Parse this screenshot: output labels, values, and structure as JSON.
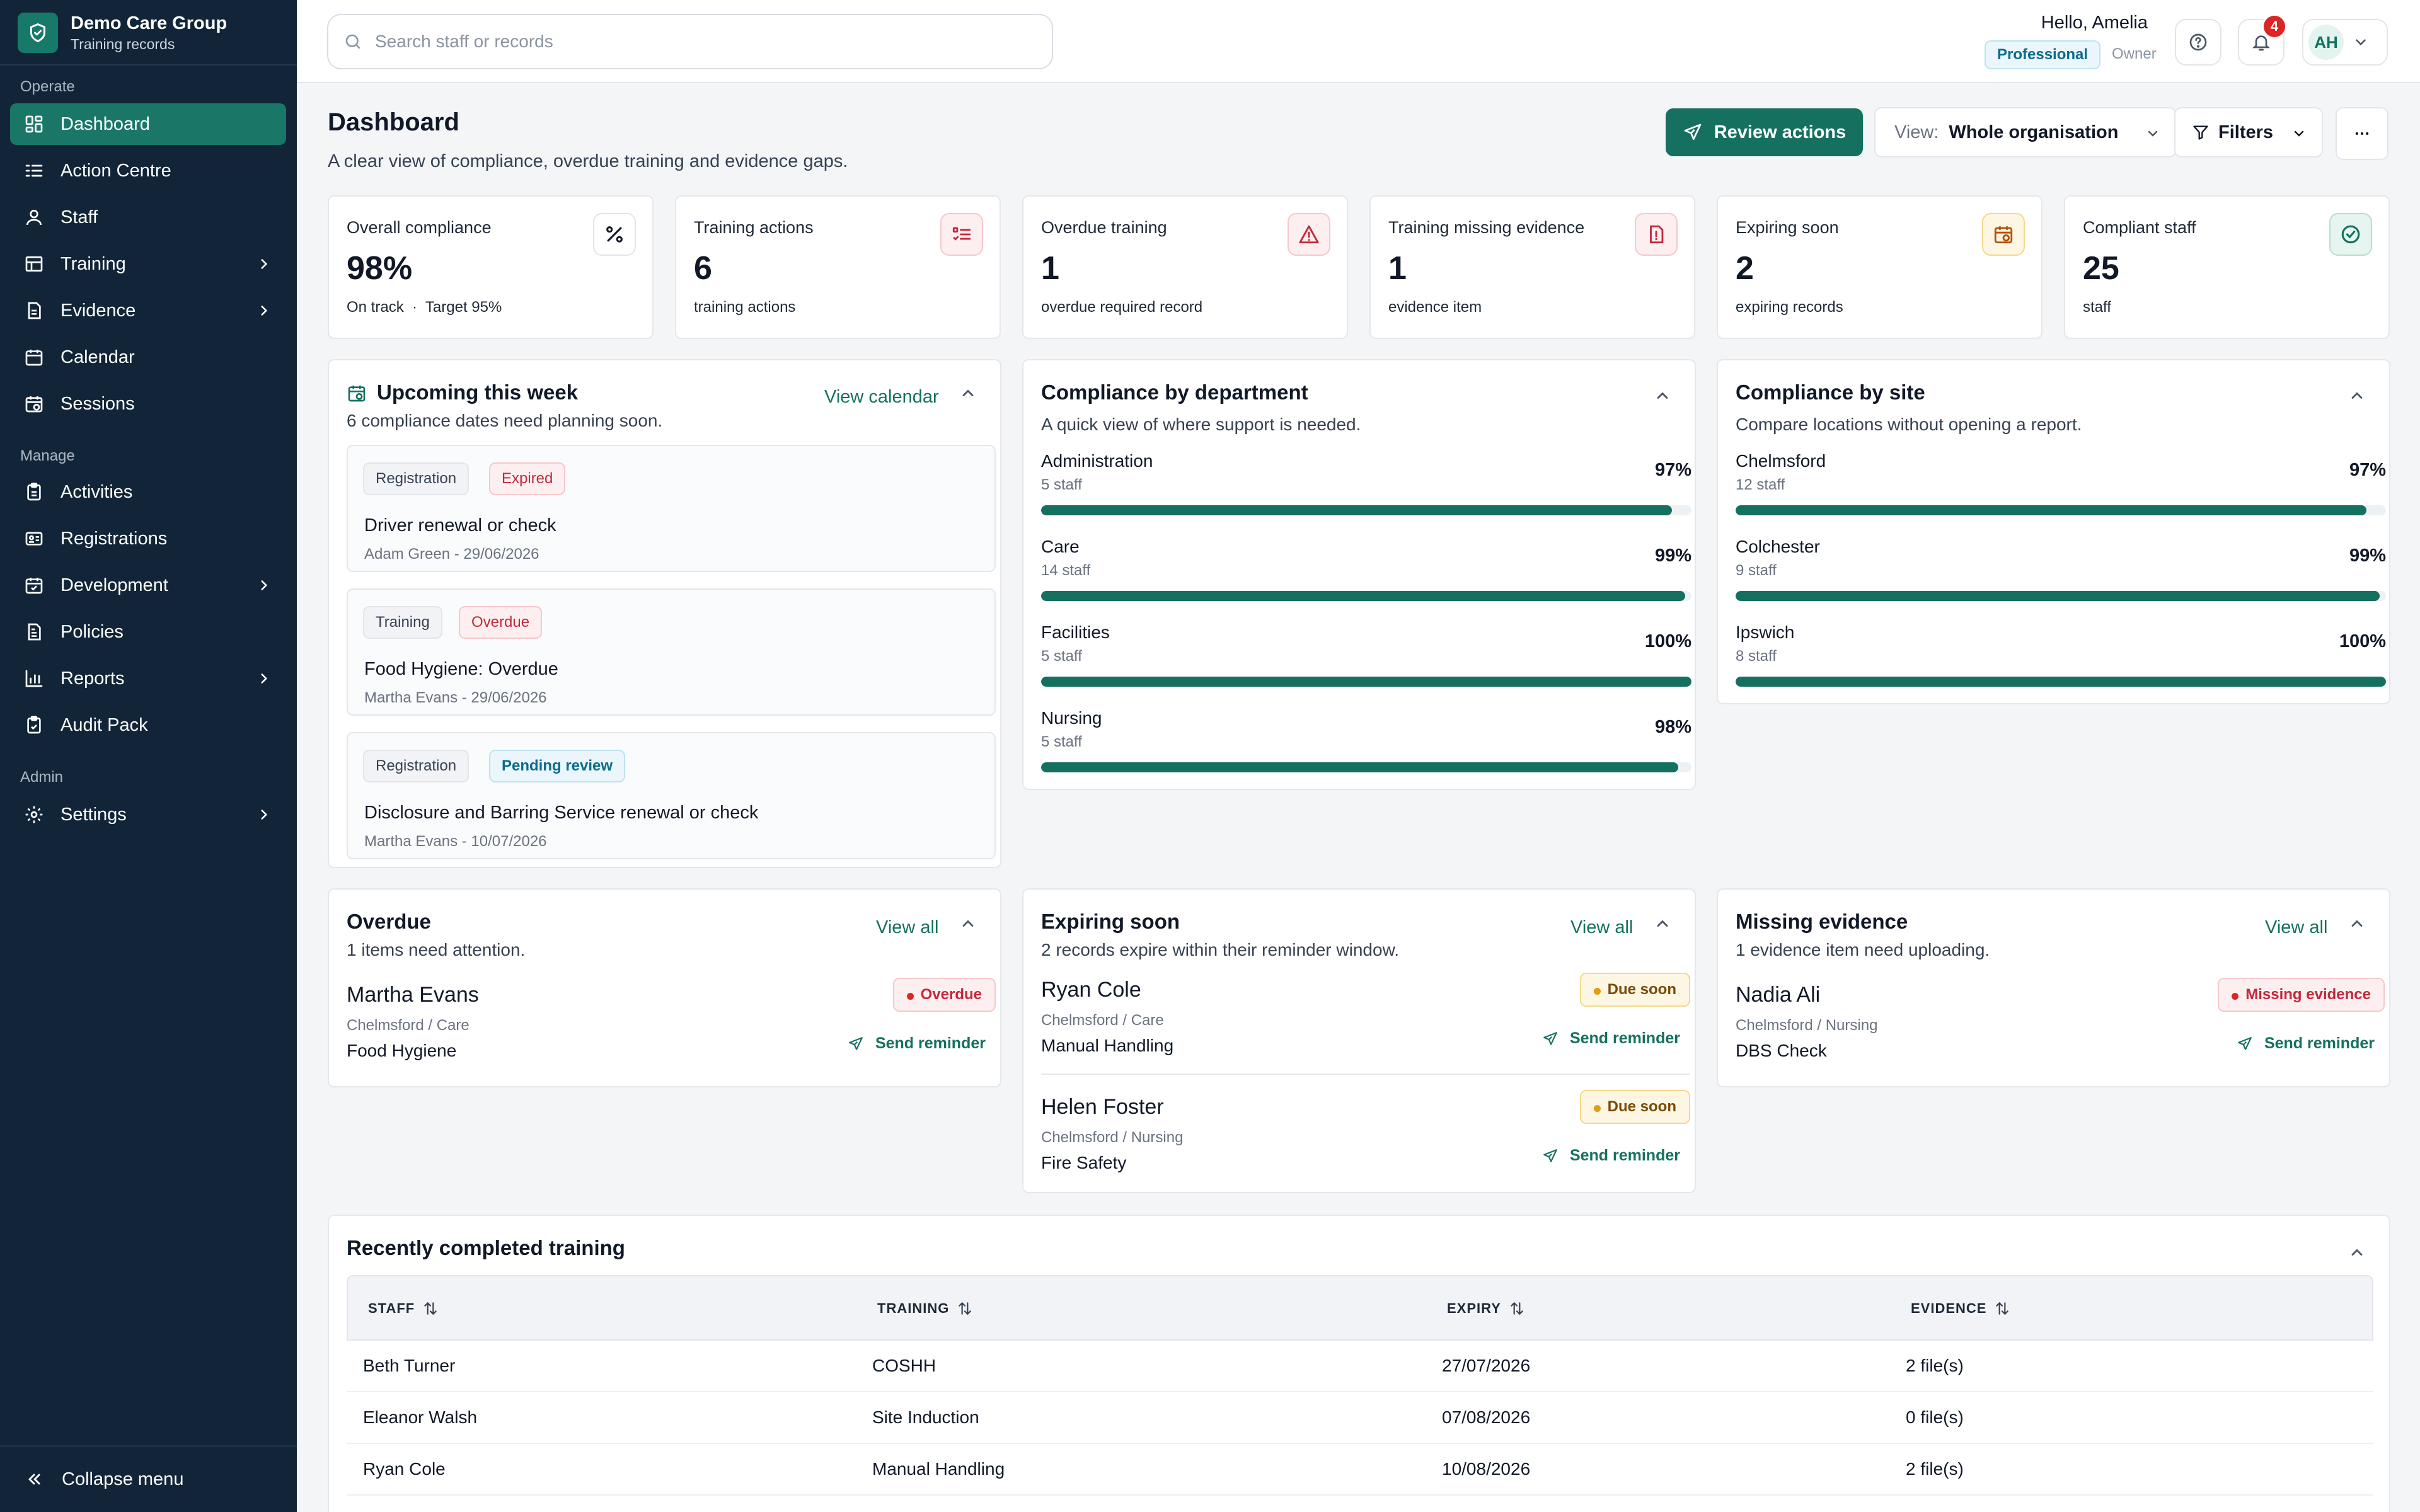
{
  "org": {
    "name": "Demo Care Group",
    "subtitle": "Training records"
  },
  "sidebar": {
    "sections": [
      {
        "title": "Operate"
      },
      {
        "title": "Manage"
      },
      {
        "title": "Admin"
      }
    ],
    "items": [
      {
        "label": "Dashboard",
        "icon": "dashboard-icon",
        "active": true
      },
      {
        "label": "Action Centre",
        "icon": "list-icon"
      },
      {
        "label": "Staff",
        "icon": "user-icon"
      },
      {
        "label": "Training",
        "icon": "table-icon",
        "expandable": true
      },
      {
        "label": "Evidence",
        "icon": "file-icon",
        "expandable": true
      },
      {
        "label": "Calendar",
        "icon": "calendar-icon"
      },
      {
        "label": "Sessions",
        "icon": "calendar-clock-icon"
      },
      {
        "label": "Activities",
        "icon": "clipboard-icon"
      },
      {
        "label": "Registrations",
        "icon": "id-card-icon"
      },
      {
        "label": "Development",
        "icon": "calendar-check-icon",
        "expandable": true
      },
      {
        "label": "Policies",
        "icon": "document-icon"
      },
      {
        "label": "Reports",
        "icon": "bar-chart-icon",
        "expandable": true
      },
      {
        "label": "Audit Pack",
        "icon": "clipboard-check-icon"
      },
      {
        "label": "Settings",
        "icon": "gear-icon",
        "expandable": true
      }
    ],
    "collapse_label": "Collapse menu"
  },
  "topbar": {
    "search_placeholder": "Search staff or records",
    "greeting": "Hello, Amelia",
    "plan": "Professional",
    "role": "Owner",
    "notifications": "4",
    "avatar_initials": "AH"
  },
  "header": {
    "title": "Dashboard",
    "subtitle": "A clear view of compliance, overdue training and evidence gaps.",
    "review_label": "Review actions",
    "view_label": "View:",
    "view_value": "Whole organisation",
    "filters_label": "Filters"
  },
  "stats": [
    {
      "label": "Overall compliance",
      "value": "98%",
      "sub": "On track  ·  Target 95%",
      "icon": "percent-icon"
    },
    {
      "label": "Training actions",
      "value": "6",
      "sub": "training actions",
      "icon": "checklist-icon"
    },
    {
      "label": "Overdue training",
      "value": "1",
      "sub": "overdue required record",
      "icon": "warning-icon"
    },
    {
      "label": "Training missing evidence",
      "value": "1",
      "sub": "evidence item",
      "icon": "file-alert-icon"
    },
    {
      "label": "Expiring soon",
      "value": "2",
      "sub": "expiring records",
      "icon": "calendar-clock-icon"
    },
    {
      "label": "Compliant staff",
      "value": "25",
      "sub": "staff",
      "icon": "check-circle-icon"
    }
  ],
  "upcoming": {
    "title": "Upcoming this week",
    "subtitle": "6 compliance dates need planning soon.",
    "link": "View calendar",
    "events": [
      {
        "type": "Registration",
        "status": "Expired",
        "title": "Driver renewal or check",
        "meta": "Adam Green - 29/06/2026"
      },
      {
        "type": "Training",
        "status": "Overdue",
        "title": "Food Hygiene: Overdue",
        "meta": "Martha Evans - 29/06/2026"
      },
      {
        "type": "Registration",
        "status": "Pending review",
        "title": "Disclosure and Barring Service renewal or check",
        "meta": "Martha Evans - 10/07/2026"
      }
    ]
  },
  "by_department": {
    "title": "Compliance by department",
    "subtitle": "A quick view of where support is needed.",
    "rows": [
      {
        "name": "Administration",
        "staff": "5 staff",
        "pct": "97%",
        "value": 97
      },
      {
        "name": "Care",
        "staff": "14 staff",
        "pct": "99%",
        "value": 99
      },
      {
        "name": "Facilities",
        "staff": "5 staff",
        "pct": "100%",
        "value": 100
      },
      {
        "name": "Nursing",
        "staff": "5 staff",
        "pct": "98%",
        "value": 98
      }
    ]
  },
  "by_site": {
    "title": "Compliance by site",
    "subtitle": "Compare locations without opening a report.",
    "rows": [
      {
        "name": "Chelmsford",
        "staff": "12 staff",
        "pct": "97%",
        "value": 97
      },
      {
        "name": "Colchester",
        "staff": "9 staff",
        "pct": "99%",
        "value": 99
      },
      {
        "name": "Ipswich",
        "staff": "8 staff",
        "pct": "100%",
        "value": 100
      }
    ]
  },
  "overdue": {
    "title": "Overdue",
    "subtitle": "1 items need attention.",
    "link": "View all",
    "items": [
      {
        "name": "Martha Evans",
        "location": "Chelmsford / Care",
        "item": "Food Hygiene",
        "status": "Overdue",
        "action": "Send reminder"
      }
    ]
  },
  "expiring": {
    "title": "Expiring soon",
    "subtitle": "2 records expire within their reminder window.",
    "link": "View all",
    "items": [
      {
        "name": "Ryan Cole",
        "location": "Chelmsford / Care",
        "item": "Manual Handling",
        "status": "Due soon",
        "action": "Send reminder"
      },
      {
        "name": "Helen Foster",
        "location": "Chelmsford / Nursing",
        "item": "Fire Safety",
        "status": "Due soon",
        "action": "Send reminder"
      }
    ]
  },
  "missing": {
    "title": "Missing evidence",
    "subtitle": "1 evidence item need uploading.",
    "link": "View all",
    "items": [
      {
        "name": "Nadia Ali",
        "location": "Chelmsford / Nursing",
        "item": "DBS Check",
        "status": "Missing evidence",
        "action": "Send reminder"
      }
    ]
  },
  "recent": {
    "title": "Recently completed training",
    "columns": [
      "STAFF",
      "TRAINING",
      "EXPIRY",
      "EVIDENCE"
    ],
    "rows": [
      [
        "Beth Turner",
        "COSHH",
        "27/07/2026",
        "2 file(s)"
      ],
      [
        "Eleanor Walsh",
        "Site Induction",
        "07/08/2026",
        "0 file(s)"
      ],
      [
        "Ryan Cole",
        "Manual Handling",
        "10/08/2026",
        "2 file(s)"
      ]
    ]
  },
  "colors": {
    "accent": "#15705f",
    "sidebar": "#122538",
    "danger": "#dc2626",
    "warning": "#e39b0f",
    "info": "#0d6b8c"
  }
}
